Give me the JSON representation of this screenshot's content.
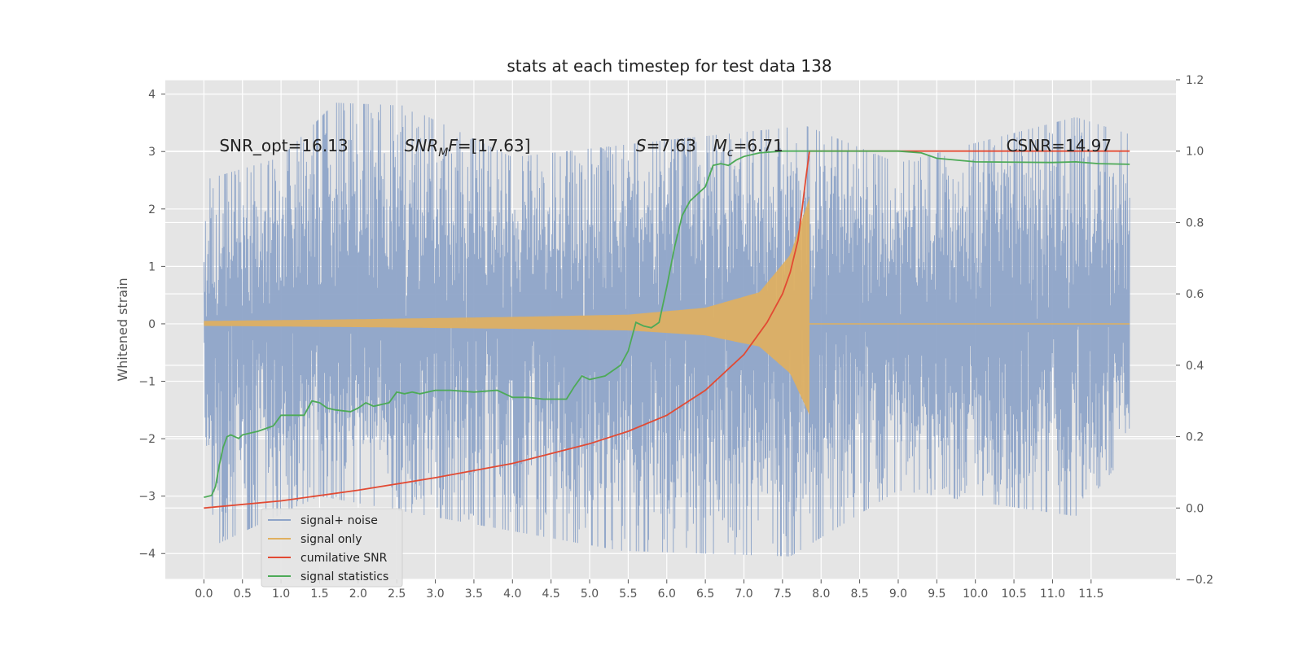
{
  "chart_data": {
    "type": "line",
    "title": "stats at each timestep for test data 138",
    "ylabel": "Whitened strain",
    "xlim": [
      -0.5,
      12.6
    ],
    "ylim": [
      -4.45,
      4.25
    ],
    "y2lim": [
      -0.2,
      1.2
    ],
    "grid": true,
    "legend_position": "lower-left",
    "x_ticks": [
      "0.0",
      "0.5",
      "1.0",
      "1.5",
      "2.0",
      "2.5",
      "3.0",
      "3.5",
      "4.0",
      "4.5",
      "5.0",
      "5.5",
      "6.0",
      "6.5",
      "7.0",
      "7.5",
      "8.0",
      "8.5",
      "9.0",
      "9.5",
      "10.0",
      "10.5",
      "11.0",
      "11.5"
    ],
    "y_ticks": [
      "−4",
      "−3",
      "−2",
      "−1",
      "0",
      "1",
      "2",
      "3",
      "4"
    ],
    "y2_ticks": [
      "−0.2",
      "0.0",
      "0.2",
      "0.4",
      "0.6",
      "0.8",
      "1.0",
      "1.2"
    ],
    "annotations": [
      {
        "html": "SNR_opt=16.13",
        "x": 0.2,
        "y": 3.0
      },
      {
        "html": "<tspan font-style='italic'>SNR</tspan><tspan font-style='italic' font-size='14' dy='6'>M</tspan><tspan font-style='italic' dy='-6'>F</tspan>=[17.63]",
        "x": 2.6,
        "y": 3.0
      },
      {
        "html": "<tspan font-style='italic'>S</tspan>=7.63",
        "x": 5.6,
        "y": 3.0
      },
      {
        "html": "<tspan font-style='italic'>M</tspan><tspan font-style='italic' font-size='14' dy='6'>c</tspan><tspan dy='-6'>=6.71</tspan>",
        "x": 6.6,
        "y": 3.0
      },
      {
        "html": "CSNR=14.97",
        "x": 10.4,
        "y": 3.0
      }
    ],
    "series": [
      {
        "name": "signal+ noise",
        "axis": "left",
        "color": "#8ea4c8",
        "kind": "noise",
        "x_range": [
          0.0,
          12.0
        ],
        "envelope_max": [
          [
            0.0,
            2.5
          ],
          [
            1.0,
            2.9
          ],
          [
            1.7,
            3.85
          ],
          [
            2.6,
            3.8
          ],
          [
            4.0,
            2.9
          ],
          [
            6.0,
            3.2
          ],
          [
            7.8,
            3.45
          ],
          [
            9.0,
            2.8
          ],
          [
            11.3,
            3.6
          ],
          [
            12.0,
            3.3
          ]
        ],
        "envelope_min": [
          [
            0.0,
            -1.6
          ],
          [
            0.15,
            -3.85
          ],
          [
            1.5,
            -3.0
          ],
          [
            5.4,
            -3.95
          ],
          [
            7.6,
            -4.05
          ],
          [
            9.0,
            -2.9
          ],
          [
            11.3,
            -3.35
          ],
          [
            12.0,
            -2.2
          ]
        ]
      },
      {
        "name": "signal only",
        "axis": "left",
        "color": "#e0b060",
        "kind": "chirp",
        "x_range": [
          0.0,
          7.85
        ],
        "amplitude": [
          [
            0.0,
            0.05
          ],
          [
            2.0,
            0.08
          ],
          [
            4.0,
            0.12
          ],
          [
            5.5,
            0.16
          ],
          [
            6.5,
            0.28
          ],
          [
            7.2,
            0.55
          ],
          [
            7.6,
            1.2
          ],
          [
            7.8,
            2.0
          ],
          [
            7.85,
            2.2
          ]
        ],
        "post_merger": [
          [
            7.85,
            0.0
          ],
          [
            12.0,
            0.0
          ]
        ]
      },
      {
        "name": "cumilative SNR",
        "axis": "right",
        "color": "#e24a33",
        "points": [
          [
            0.0,
            0.0
          ],
          [
            1.0,
            0.02
          ],
          [
            2.0,
            0.05
          ],
          [
            3.0,
            0.085
          ],
          [
            4.0,
            0.125
          ],
          [
            5.0,
            0.18
          ],
          [
            5.5,
            0.215
          ],
          [
            6.0,
            0.26
          ],
          [
            6.5,
            0.33
          ],
          [
            7.0,
            0.43
          ],
          [
            7.3,
            0.52
          ],
          [
            7.5,
            0.6
          ],
          [
            7.6,
            0.66
          ],
          [
            7.7,
            0.75
          ],
          [
            7.75,
            0.83
          ],
          [
            7.8,
            0.92
          ],
          [
            7.85,
            1.0
          ],
          [
            12.0,
            1.0
          ]
        ]
      },
      {
        "name": "signal statistics",
        "axis": "right",
        "color": "#4daa57",
        "points": [
          [
            0.0,
            0.03
          ],
          [
            0.1,
            0.035
          ],
          [
            0.15,
            0.06
          ],
          [
            0.2,
            0.12
          ],
          [
            0.25,
            0.17
          ],
          [
            0.3,
            0.2
          ],
          [
            0.35,
            0.205
          ],
          [
            0.45,
            0.195
          ],
          [
            0.5,
            0.205
          ],
          [
            0.7,
            0.215
          ],
          [
            0.9,
            0.23
          ],
          [
            1.0,
            0.26
          ],
          [
            1.2,
            0.26
          ],
          [
            1.3,
            0.26
          ],
          [
            1.4,
            0.3
          ],
          [
            1.5,
            0.295
          ],
          [
            1.6,
            0.28
          ],
          [
            1.7,
            0.275
          ],
          [
            1.9,
            0.27
          ],
          [
            2.0,
            0.28
          ],
          [
            2.1,
            0.295
          ],
          [
            2.2,
            0.285
          ],
          [
            2.4,
            0.295
          ],
          [
            2.5,
            0.325
          ],
          [
            2.6,
            0.32
          ],
          [
            2.7,
            0.325
          ],
          [
            2.8,
            0.32
          ],
          [
            3.0,
            0.33
          ],
          [
            3.2,
            0.33
          ],
          [
            3.5,
            0.325
          ],
          [
            3.8,
            0.33
          ],
          [
            4.0,
            0.31
          ],
          [
            4.2,
            0.31
          ],
          [
            4.4,
            0.305
          ],
          [
            4.6,
            0.305
          ],
          [
            4.7,
            0.305
          ],
          [
            4.8,
            0.34
          ],
          [
            4.9,
            0.37
          ],
          [
            5.0,
            0.36
          ],
          [
            5.2,
            0.37
          ],
          [
            5.4,
            0.4
          ],
          [
            5.5,
            0.44
          ],
          [
            5.6,
            0.52
          ],
          [
            5.7,
            0.51
          ],
          [
            5.8,
            0.505
          ],
          [
            5.9,
            0.52
          ],
          [
            6.0,
            0.62
          ],
          [
            6.1,
            0.73
          ],
          [
            6.2,
            0.82
          ],
          [
            6.3,
            0.86
          ],
          [
            6.4,
            0.88
          ],
          [
            6.5,
            0.9
          ],
          [
            6.6,
            0.96
          ],
          [
            6.7,
            0.965
          ],
          [
            6.8,
            0.96
          ],
          [
            6.9,
            0.975
          ],
          [
            7.0,
            0.985
          ],
          [
            7.2,
            0.995
          ],
          [
            7.5,
            1.0
          ],
          [
            8.0,
            1.0
          ],
          [
            9.0,
            1.0
          ],
          [
            9.3,
            0.995
          ],
          [
            9.5,
            0.98
          ],
          [
            10.0,
            0.97
          ],
          [
            11.0,
            0.968
          ],
          [
            11.3,
            0.97
          ],
          [
            11.6,
            0.965
          ],
          [
            12.0,
            0.963
          ]
        ]
      }
    ]
  }
}
